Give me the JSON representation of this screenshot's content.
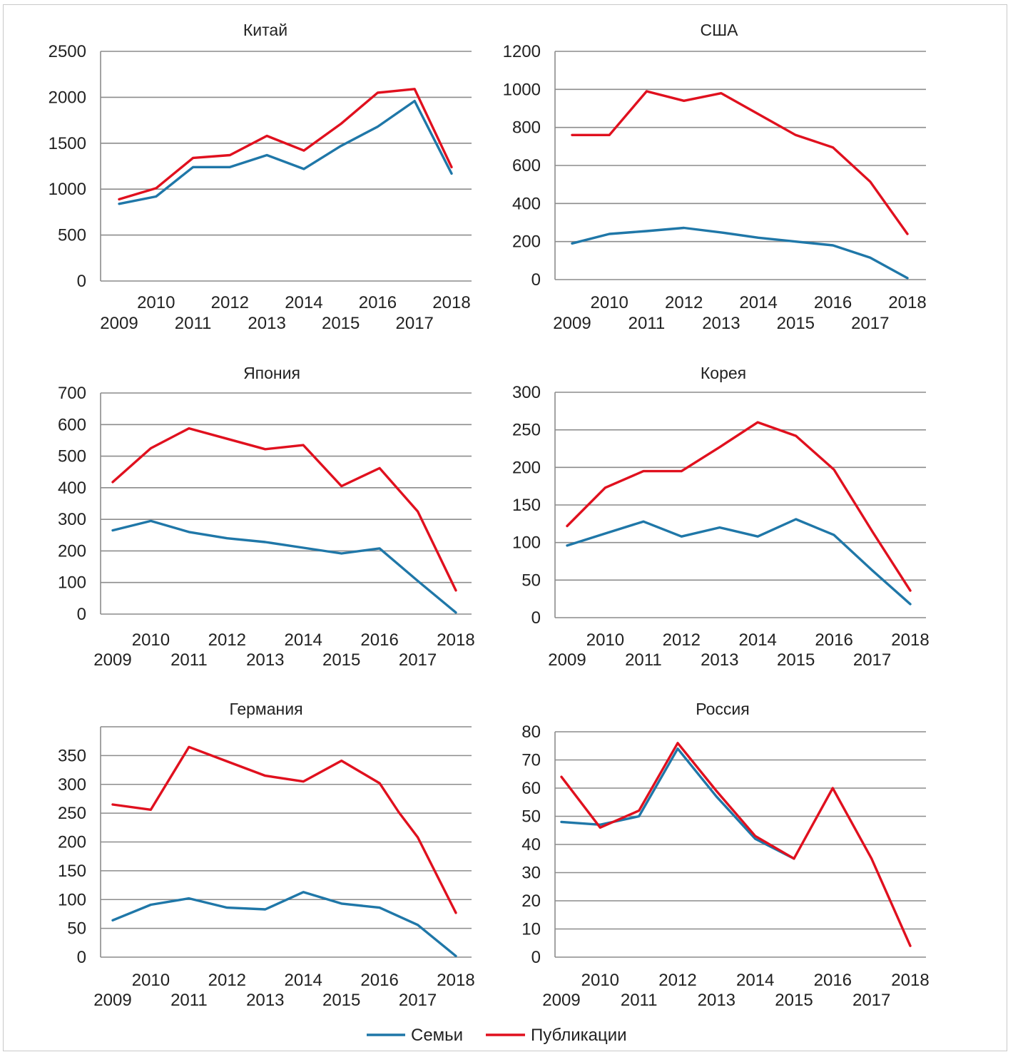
{
  "colors": {
    "families": "#1f77a8",
    "publications": "#e0101e",
    "grid": "#8c8c8c"
  },
  "legend": {
    "families_label": "Семьи",
    "publications_label": "Публикации"
  },
  "chart_data": [
    {
      "type": "line",
      "title": "Китай",
      "x": [
        "2009",
        "2010",
        "2011",
        "2012",
        "2013",
        "2014",
        "2015",
        "2016",
        "2017",
        "2018"
      ],
      "ylim": [
        0,
        2500
      ],
      "yticks": [
        "0",
        "500",
        "1000",
        "1500",
        "2000",
        "2500"
      ],
      "series": [
        {
          "name": "Семьи",
          "values": [
            840,
            920,
            1240,
            1240,
            1370,
            1220,
            1470,
            1680,
            1960,
            1170
          ]
        },
        {
          "name": "Публикации",
          "values": [
            890,
            1010,
            1340,
            1370,
            1580,
            1420,
            1710,
            2050,
            2090,
            1240
          ]
        }
      ]
    },
    {
      "type": "line",
      "title": "США",
      "x": [
        "2009",
        "2010",
        "2011",
        "2012",
        "2013",
        "2014",
        "2015",
        "2016",
        "2017",
        "2018"
      ],
      "ylim": [
        0,
        1200
      ],
      "yticks": [
        "0",
        "200",
        "400",
        "600",
        "800",
        "1000",
        "1200"
      ],
      "series": [
        {
          "name": "Семьи",
          "values": [
            190,
            240,
            255,
            272,
            248,
            220,
            200,
            180,
            115,
            8
          ]
        },
        {
          "name": "Публикации",
          "values": [
            760,
            760,
            990,
            940,
            980,
            870,
            760,
            695,
            515,
            240
          ]
        }
      ]
    },
    {
      "type": "line",
      "title": "Япония",
      "x": [
        "2009",
        "2010",
        "2011",
        "2012",
        "2013",
        "2014",
        "2015",
        "2016",
        "2017",
        "2018"
      ],
      "ylim": [
        0,
        700
      ],
      "yticks": [
        "0",
        "100",
        "200",
        "300",
        "400",
        "500",
        "600",
        "700"
      ],
      "series": [
        {
          "name": "Семьи",
          "values": [
            265,
            295,
            260,
            240,
            228,
            210,
            192,
            208,
            105,
            5
          ]
        },
        {
          "name": "Публикации",
          "values": [
            418,
            525,
            588,
            555,
            522,
            535,
            405,
            462,
            325,
            75
          ]
        }
      ]
    },
    {
      "type": "line",
      "title": "Корея",
      "x": [
        "2009",
        "2010",
        "2011",
        "2012",
        "2013",
        "2014",
        "2015",
        "2016",
        "2017",
        "2018"
      ],
      "ylim": [
        0,
        300
      ],
      "yticks": [
        "0",
        "50",
        "100",
        "150",
        "200",
        "250",
        "300"
      ],
      "series": [
        {
          "name": "Семьи",
          "values": [
            96,
            112,
            128,
            108,
            120,
            108,
            131,
            110,
            63,
            18
          ]
        },
        {
          "name": "Публикации",
          "values": [
            122,
            173,
            195,
            195,
            227,
            260,
            242,
            197,
            115,
            36
          ]
        }
      ]
    },
    {
      "type": "line",
      "title": "Германия",
      "x": [
        "2009",
        "2010",
        "2011",
        "2012",
        "2013",
        "2014",
        "2015",
        "2016",
        "2017",
        "2018"
      ],
      "ylim": [
        0,
        400
      ],
      "yticks": [
        "0",
        "50",
        "100",
        "150",
        "200",
        "250",
        "300",
        "350"
      ],
      "series": [
        {
          "name": "Семьи",
          "values": [
            64,
            91,
            102,
            86,
            83,
            113,
            93,
            86,
            56,
            2
          ]
        },
        {
          "name": "Публикации",
          "values": [
            265,
            256,
            365,
            340,
            315,
            305,
            341,
            302,
            252,
            208,
            77
          ],
          "x": [
            "2009",
            "2010",
            "2011",
            "2012",
            "2013",
            "2014",
            "2015",
            "2016",
            "2016.5",
            "2017",
            "2018"
          ]
        }
      ]
    },
    {
      "type": "line",
      "title": "Россия",
      "x": [
        "2009",
        "2010",
        "2011",
        "2012",
        "2013",
        "2014",
        "2015",
        "2016",
        "2017",
        "2018"
      ],
      "ylim": [
        0,
        80
      ],
      "yticks": [
        "0",
        "10",
        "20",
        "30",
        "40",
        "50",
        "60",
        "70",
        "80"
      ],
      "series": [
        {
          "name": "Семьи",
          "values": [
            48,
            47,
            50,
            74,
            57,
            42,
            35,
            null,
            null,
            null
          ]
        },
        {
          "name": "Публикации",
          "values": [
            64,
            46,
            52,
            76,
            59,
            43,
            35,
            60,
            35,
            4
          ]
        }
      ]
    }
  ]
}
